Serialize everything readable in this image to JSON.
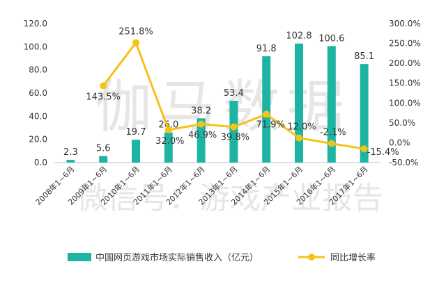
{
  "chart_data": {
    "type": "bar",
    "categories": [
      "2008年1~6月",
      "2009年1~6月",
      "2010年1~6月",
      "2011年1~6月",
      "2012年1~6月",
      "2013年1~6月",
      "2014年1~6月",
      "2015年1~6月",
      "2016年1~6月",
      "2017年1~6月"
    ],
    "series": [
      {
        "name": "中国网页游戏市场实际销售收入（亿元）",
        "type": "bar",
        "axis": "left",
        "values": [
          2.3,
          5.6,
          19.7,
          26.0,
          38.2,
          53.4,
          91.8,
          102.8,
          100.6,
          85.1
        ],
        "labels": [
          "2.3",
          "5.6",
          "19.7",
          "26.0",
          "38.2",
          "53.4",
          "91.8",
          "102.8",
          "100.6",
          "85.1"
        ]
      },
      {
        "name": "同比增长率",
        "type": "line",
        "axis": "right",
        "values": [
          null,
          143.5,
          251.8,
          32.0,
          46.9,
          39.8,
          71.9,
          12.0,
          -2.1,
          -15.4
        ],
        "labels": [
          "",
          "143.5%",
          "251.8%",
          "32.0%",
          "46.9%",
          "39.8%",
          "71.9%",
          "12.0%",
          "-2.1%",
          "-15.4%"
        ]
      }
    ],
    "y_left": {
      "min": 0,
      "max": 120,
      "ticks": [
        "0.0",
        "20.0",
        "40.0",
        "60.0",
        "80.0",
        "100.0",
        "120.0"
      ]
    },
    "y_right": {
      "min": -50,
      "max": 300,
      "ticks": [
        "-50.0%",
        "0.0%",
        "50.0%",
        "100.0%",
        "150.0%",
        "200.0%",
        "250.0%",
        "300.0%"
      ]
    },
    "legend_position": "bottom",
    "colors": {
      "bar": "#1eb4a4",
      "line": "#f5c216"
    },
    "grid": false
  },
  "watermark": {
    "line1": "伽马数据",
    "line2": "微信号：游戏产业报告"
  }
}
